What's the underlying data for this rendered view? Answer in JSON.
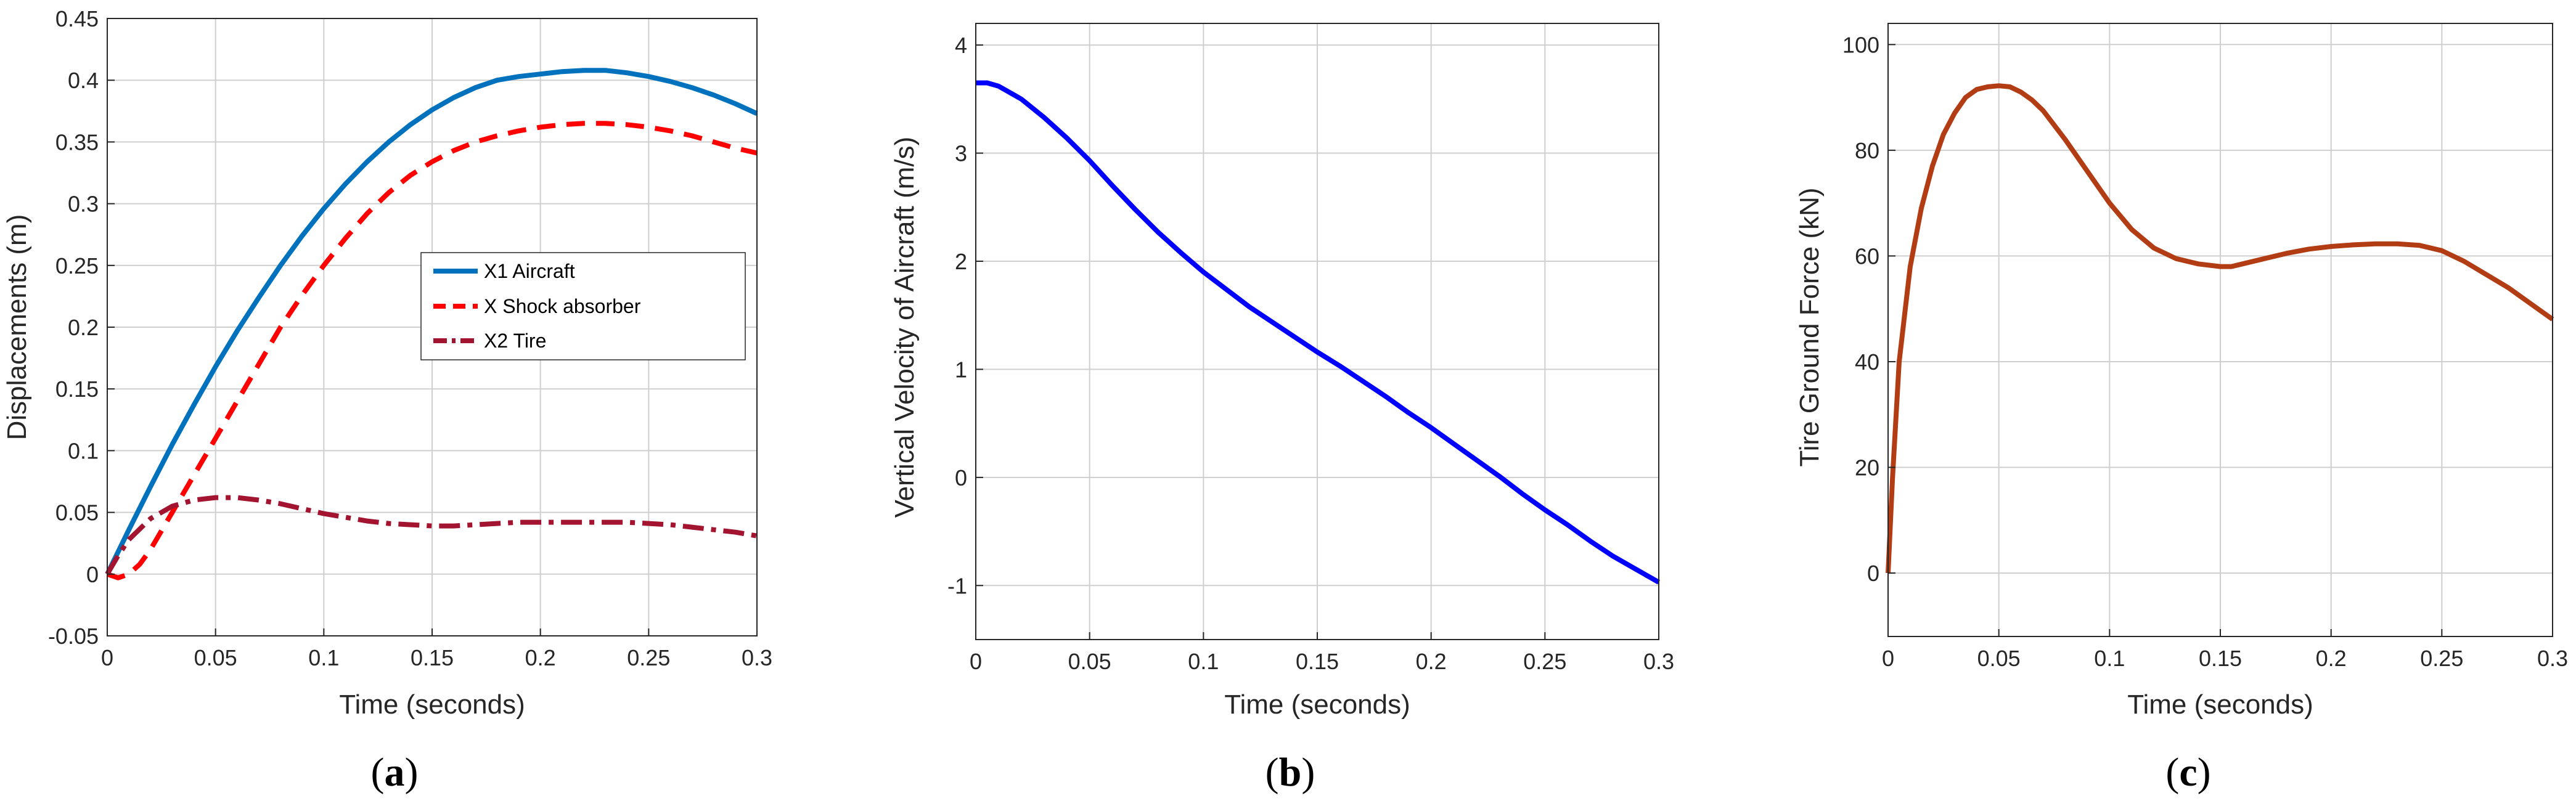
{
  "chart_data": [
    {
      "type": "line",
      "panel_label": "a",
      "xlabel": "Time (seconds)",
      "ylabel": "Displacements (m)",
      "xlim": [
        0,
        0.3
      ],
      "ylim": [
        -0.05,
        0.45
      ],
      "xticks": [
        "0",
        "0.05",
        "0.1",
        "0.15",
        "0.2",
        "0.25",
        "0.3"
      ],
      "yticks": [
        "-0.05",
        "0",
        "0.05",
        "0.1",
        "0.15",
        "0.2",
        "0.25",
        "0.3",
        "0.35",
        "0.4",
        "0.45"
      ],
      "grid": true,
      "legend_position": "center-right",
      "series": [
        {
          "name": "X1 Aircraft",
          "color": "#0072BD",
          "style": "solid",
          "x": [
            0,
            0.01,
            0.02,
            0.03,
            0.04,
            0.05,
            0.06,
            0.07,
            0.08,
            0.09,
            0.1,
            0.11,
            0.12,
            0.13,
            0.14,
            0.15,
            0.16,
            0.17,
            0.18,
            0.19,
            0.2,
            0.21,
            0.22,
            0.23,
            0.24,
            0.25,
            0.26,
            0.27,
            0.28,
            0.29,
            0.3
          ],
          "y": [
            0,
            0.036,
            0.071,
            0.105,
            0.137,
            0.168,
            0.197,
            0.224,
            0.25,
            0.274,
            0.296,
            0.316,
            0.334,
            0.35,
            0.364,
            0.376,
            0.386,
            0.394,
            0.4,
            0.403,
            0.405,
            0.407,
            0.408,
            0.408,
            0.406,
            0.403,
            0.399,
            0.394,
            0.388,
            0.381,
            0.373
          ]
        },
        {
          "name": "X Shock absorber",
          "color": "#FF0000",
          "style": "dashed",
          "x": [
            0,
            0.005,
            0.01,
            0.015,
            0.02,
            0.03,
            0.04,
            0.05,
            0.06,
            0.07,
            0.08,
            0.09,
            0.1,
            0.11,
            0.12,
            0.13,
            0.14,
            0.15,
            0.16,
            0.17,
            0.18,
            0.19,
            0.2,
            0.21,
            0.22,
            0.23,
            0.24,
            0.25,
            0.26,
            0.27,
            0.28,
            0.29,
            0.3
          ],
          "y": [
            0,
            -0.003,
            0,
            0.008,
            0.02,
            0.05,
            0.08,
            0.11,
            0.14,
            0.17,
            0.2,
            0.226,
            0.25,
            0.272,
            0.292,
            0.309,
            0.323,
            0.334,
            0.343,
            0.35,
            0.355,
            0.359,
            0.362,
            0.364,
            0.365,
            0.365,
            0.364,
            0.362,
            0.359,
            0.355,
            0.35,
            0.345,
            0.341
          ]
        },
        {
          "name": "X2 Tire",
          "color": "#A2142F",
          "style": "dashdot",
          "x": [
            0,
            0.005,
            0.01,
            0.02,
            0.03,
            0.04,
            0.05,
            0.06,
            0.07,
            0.08,
            0.09,
            0.1,
            0.11,
            0.12,
            0.13,
            0.14,
            0.15,
            0.16,
            0.17,
            0.18,
            0.19,
            0.2,
            0.21,
            0.22,
            0.23,
            0.24,
            0.25,
            0.26,
            0.27,
            0.28,
            0.29,
            0.3
          ],
          "y": [
            0,
            0.015,
            0.028,
            0.045,
            0.055,
            0.06,
            0.062,
            0.062,
            0.06,
            0.057,
            0.053,
            0.049,
            0.046,
            0.043,
            0.041,
            0.04,
            0.039,
            0.039,
            0.04,
            0.041,
            0.042,
            0.042,
            0.042,
            0.042,
            0.042,
            0.042,
            0.041,
            0.04,
            0.038,
            0.036,
            0.034,
            0.031
          ]
        }
      ]
    },
    {
      "type": "line",
      "panel_label": "b",
      "xlabel": "Time (seconds)",
      "ylabel": "Vertical Velocity of Aircraft (m/s)",
      "xlim": [
        0,
        0.3
      ],
      "ylim": [
        -1.5,
        4.2
      ],
      "xticks": [
        "0",
        "0.05",
        "0.1",
        "0.15",
        "0.2",
        "0.25",
        "0.3"
      ],
      "yticks": [
        "-1",
        "0",
        "1",
        "2",
        "3",
        "4"
      ],
      "grid": true,
      "series": [
        {
          "color": "#0000FF",
          "style": "solid",
          "x": [
            0,
            0.005,
            0.01,
            0.02,
            0.03,
            0.04,
            0.05,
            0.06,
            0.07,
            0.08,
            0.09,
            0.1,
            0.11,
            0.12,
            0.13,
            0.14,
            0.15,
            0.16,
            0.17,
            0.18,
            0.19,
            0.2,
            0.21,
            0.22,
            0.23,
            0.24,
            0.25,
            0.26,
            0.27,
            0.28,
            0.29,
            0.3
          ],
          "y": [
            3.65,
            3.65,
            3.62,
            3.5,
            3.33,
            3.14,
            2.93,
            2.7,
            2.48,
            2.27,
            2.08,
            1.9,
            1.74,
            1.58,
            1.44,
            1.3,
            1.16,
            1.03,
            0.89,
            0.75,
            0.6,
            0.46,
            0.31,
            0.16,
            0.01,
            -0.15,
            -0.3,
            -0.44,
            -0.59,
            -0.73,
            -0.85,
            -0.97
          ]
        }
      ]
    },
    {
      "type": "line",
      "panel_label": "c",
      "xlabel": "Time (seconds)",
      "ylabel": "Tire Ground Force (kN)",
      "xlim": [
        0,
        0.3
      ],
      "ylim": [
        -12,
        104
      ],
      "xticks": [
        "0",
        "0.05",
        "0.1",
        "0.15",
        "0.2",
        "0.25",
        "0.3"
      ],
      "yticks": [
        "0",
        "20",
        "40",
        "60",
        "80",
        "100"
      ],
      "grid": true,
      "series": [
        {
          "color": "#B23D14",
          "style": "solid",
          "x": [
            0,
            0.002,
            0.005,
            0.01,
            0.015,
            0.02,
            0.025,
            0.03,
            0.035,
            0.04,
            0.045,
            0.05,
            0.055,
            0.06,
            0.065,
            0.07,
            0.08,
            0.09,
            0.1,
            0.11,
            0.12,
            0.13,
            0.14,
            0.15,
            0.155,
            0.16,
            0.17,
            0.18,
            0.19,
            0.2,
            0.21,
            0.22,
            0.23,
            0.24,
            0.25,
            0.26,
            0.27,
            0.28,
            0.29,
            0.3
          ],
          "y": [
            0,
            18,
            40,
            58,
            69,
            77,
            83,
            87,
            90,
            91.5,
            92,
            92.2,
            92,
            91,
            89.5,
            87.5,
            82,
            76,
            70,
            65,
            61.5,
            59.5,
            58.5,
            58,
            58,
            58.5,
            59.5,
            60.5,
            61.3,
            61.8,
            62.1,
            62.3,
            62.3,
            62,
            61,
            59,
            56.5,
            54,
            51,
            48
          ]
        }
      ]
    }
  ]
}
